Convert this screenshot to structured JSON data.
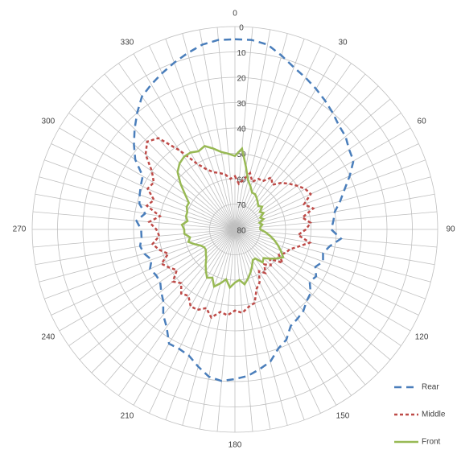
{
  "chart_data": {
    "type": "radar",
    "x": [
      0,
      5,
      10,
      15,
      20,
      25,
      30,
      35,
      40,
      45,
      50,
      55,
      60,
      65,
      70,
      75,
      80,
      85,
      90,
      95,
      100,
      105,
      110,
      115,
      120,
      125,
      130,
      135,
      140,
      145,
      150,
      155,
      160,
      165,
      170,
      175,
      180,
      185,
      190,
      195,
      200,
      205,
      210,
      215,
      220,
      225,
      230,
      235,
      240,
      245,
      250,
      255,
      260,
      265,
      270,
      275,
      280,
      285,
      290,
      295,
      300,
      305,
      310,
      315,
      320,
      325,
      330,
      335,
      340,
      345,
      350,
      355
    ],
    "xticks": [
      0,
      30,
      60,
      90,
      120,
      150,
      180,
      210,
      240,
      270,
      300,
      330
    ],
    "ylim": [
      80,
      0
    ],
    "yticks": [
      0,
      10,
      20,
      30,
      40,
      50,
      60,
      70,
      80
    ],
    "grid": true,
    "legend": "bottom-right",
    "series": [
      {
        "name": "Rear",
        "color": "#4a7ebb",
        "style": "dash",
        "values": [
          5,
          5,
          6,
          9,
          12,
          14,
          16,
          18,
          20,
          22,
          23,
          25,
          26,
          30,
          34,
          37,
          40,
          41,
          42,
          38,
          42,
          44,
          43,
          45,
          43,
          44,
          41,
          40,
          38,
          37,
          36,
          32,
          30,
          26,
          24,
          22,
          21,
          20,
          21,
          24,
          27,
          28,
          28,
          33,
          36,
          40,
          42,
          44,
          44,
          43,
          45,
          43,
          42,
          43,
          43,
          41,
          44,
          41,
          40,
          39,
          38,
          32,
          28,
          24,
          20,
          16,
          14,
          12,
          10,
          8,
          6,
          5
        ]
      },
      {
        "name": "Middle",
        "color": "#be4b48",
        "style": "dot",
        "values": [
          59,
          62,
          60,
          57,
          60,
          58,
          58,
          55,
          57,
          54,
          52,
          50,
          48,
          47,
          51,
          48,
          53,
          50,
          52,
          55,
          50,
          54,
          57,
          58,
          60,
          57,
          62,
          60,
          62,
          59,
          61,
          57,
          55,
          50,
          49,
          47,
          48,
          46,
          47,
          44,
          47,
          45,
          45,
          48,
          47,
          50,
          48,
          52,
          50,
          48,
          52,
          49,
          47,
          50,
          49,
          46,
          50,
          44,
          46,
          42,
          43,
          40,
          34,
          31,
          33,
          42,
          50,
          54,
          56,
          57,
          58,
          60
        ]
      },
      {
        "name": "Front",
        "color": "#98b954",
        "style": "solid",
        "values": [
          51,
          48,
          55,
          60,
          62,
          64,
          64,
          65,
          66,
          67,
          66,
          68,
          67,
          69,
          68,
          70,
          69,
          70,
          70,
          68,
          66,
          64,
          62,
          60,
          58,
          60,
          62,
          64,
          63,
          66,
          66,
          64,
          62,
          60,
          58,
          60,
          59,
          57,
          60,
          58,
          56,
          59,
          58,
          60,
          62,
          64,
          65,
          66,
          66,
          65,
          63,
          61,
          62,
          60,
          60,
          59,
          61,
          60,
          60,
          59,
          59,
          56,
          52,
          48,
          46,
          45,
          45,
          46,
          45,
          47,
          49,
          50
        ]
      }
    ]
  }
}
